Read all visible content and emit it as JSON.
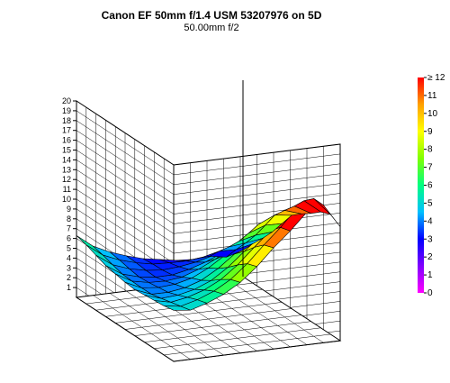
{
  "chart_data": {
    "type": "surface",
    "title": "Canon EF 50mm f/1.4 USM  53207976 on 5D",
    "subtitle": "50.00mm f/2",
    "z_ticks": [
      "1",
      "2",
      "3",
      "4",
      "5",
      "6",
      "7",
      "8",
      "9",
      "10",
      "11",
      "12",
      "13",
      "14",
      "15",
      "16",
      "17",
      "18",
      "19",
      "20"
    ],
    "zlim": [
      0,
      20
    ],
    "colorbar": {
      "ticks": [
        "0",
        "1",
        "2",
        "3",
        "4",
        "5",
        "6",
        "7",
        "8",
        "9",
        "10",
        "11",
        "≥ 12"
      ],
      "range": [
        0,
        12
      ],
      "colors": [
        "#ff00ff",
        "#8000ff",
        "#0000ff",
        "#00c0ff",
        "#00ff80",
        "#80ff00",
        "#ffff00",
        "#ffa000",
        "#ff0000"
      ]
    },
    "grid_size": [
      11,
      11
    ],
    "surface": {
      "front_edge": [
        6.3,
        5.0,
        4.2,
        3.6,
        3.1,
        2.8,
        2.5,
        2.4,
        2.5,
        2.2,
        2.7
      ],
      "right_edge": [
        2.7,
        4.0,
        5.2,
        6.5,
        8.0,
        9.5,
        10.3,
        11.0,
        11.8,
        12.2,
        11.6
      ],
      "back_edge": [
        5.2,
        5.0,
        5.5,
        6.2,
        7.2,
        8.6,
        10.3,
        11.8,
        13.5,
        14.0,
        11.6
      ],
      "left_edge": [
        6.3,
        6.0,
        5.6,
        5.2,
        5.0,
        4.8,
        4.7,
        4.8,
        4.9,
        5.0,
        5.2
      ],
      "center_dip": 1.2
    }
  }
}
